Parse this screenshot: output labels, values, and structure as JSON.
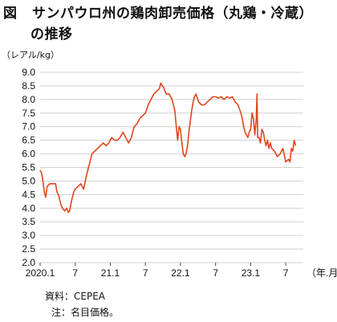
{
  "title": {
    "figure_label": "図",
    "line1": "サンパウロ州の鶏肉卸売価格（丸鶏・冷蔵）",
    "line2": "の推移"
  },
  "unit_label": "（レアル/kg）",
  "source": "資料：CEPEA",
  "note": "注：名目価格。",
  "colors": {
    "series": "#e0461e",
    "grid": "#d0d0d0",
    "axis": "#444444"
  },
  "chart_data": {
    "type": "line",
    "ylabel": "（レアル/kg）",
    "xlabel": "（年.月）",
    "ylim": [
      2.0,
      9.0
    ],
    "yticks": [
      "9.0",
      "8.5",
      "8.0",
      "7.5",
      "7.0",
      "6.5",
      "6.0",
      "5.5",
      "5.0",
      "4.5",
      "4.0",
      "3.5",
      "3.0",
      "2.5",
      "2.0"
    ],
    "xlim": [
      2020.0,
      2023.75
    ],
    "xticks": [
      {
        "label": "2020.1",
        "x": 2020.0
      },
      {
        "label": "7",
        "x": 2020.5
      },
      {
        "label": "21.1",
        "x": 2021.0
      },
      {
        "label": "7",
        "x": 2021.5
      },
      {
        "label": "22.1",
        "x": 2022.0
      },
      {
        "label": "7",
        "x": 2022.5
      },
      {
        "label": "23.1",
        "x": 2023.0
      },
      {
        "label": "7",
        "x": 2023.5
      }
    ],
    "x_unit_label": "（年.月）",
    "grid": true,
    "series": [
      {
        "x": [
          2020.0,
          2020.02,
          2020.04,
          2020.06,
          2020.08,
          2020.1,
          2020.14,
          2020.18,
          2020.22,
          2020.24,
          2020.26,
          2020.28,
          2020.3,
          2020.32,
          2020.35,
          2020.38,
          2020.4,
          2020.42,
          2020.45,
          2020.48,
          2020.5,
          2020.54,
          2020.58,
          2020.62,
          2020.66,
          2020.7,
          2020.74,
          2020.78,
          2020.82,
          2020.86,
          2020.9,
          2020.94,
          2020.98,
          2021.02,
          2021.06,
          2021.1,
          2021.14,
          2021.18,
          2021.22,
          2021.26,
          2021.3,
          2021.34,
          2021.38,
          2021.42,
          2021.46,
          2021.5,
          2021.54,
          2021.58,
          2021.62,
          2021.66,
          2021.7,
          2021.72,
          2021.74,
          2021.76,
          2021.78,
          2021.8,
          2021.84,
          2021.88,
          2021.92,
          2021.94,
          2021.96,
          2021.98,
          2022.0,
          2022.02,
          2022.04,
          2022.06,
          2022.08,
          2022.1,
          2022.12,
          2022.14,
          2022.16,
          2022.18,
          2022.2,
          2022.22,
          2022.26,
          2022.3,
          2022.34,
          2022.38,
          2022.42,
          2022.46,
          2022.5,
          2022.54,
          2022.58,
          2022.62,
          2022.66,
          2022.7,
          2022.74,
          2022.78,
          2022.82,
          2022.86,
          2022.88,
          2022.9,
          2022.92,
          2022.94,
          2022.96,
          2022.98,
          2023.0,
          2023.02,
          2023.04,
          2023.06,
          2023.08,
          2023.09,
          2023.1,
          2023.12,
          2023.14,
          2023.16,
          2023.18,
          2023.2,
          2023.22,
          2023.24,
          2023.26,
          2023.28,
          2023.3,
          2023.34,
          2023.38,
          2023.42,
          2023.46,
          2023.5,
          2023.54,
          2023.56,
          2023.58,
          2023.6,
          2023.62,
          2023.64
        ],
        "y": [
          5.4,
          5.3,
          5.0,
          4.6,
          4.4,
          4.8,
          4.9,
          4.9,
          4.9,
          4.6,
          4.5,
          4.3,
          4.1,
          4.0,
          3.9,
          4.0,
          3.85,
          3.9,
          4.3,
          4.6,
          4.7,
          4.8,
          4.9,
          4.7,
          5.2,
          5.6,
          6.0,
          6.1,
          6.2,
          6.3,
          6.4,
          6.3,
          6.4,
          6.6,
          6.5,
          6.5,
          6.6,
          6.8,
          6.6,
          6.4,
          6.6,
          7.0,
          7.1,
          7.3,
          7.4,
          7.5,
          7.8,
          8.0,
          8.2,
          8.3,
          8.4,
          8.6,
          8.5,
          8.45,
          8.3,
          8.2,
          8.2,
          8.0,
          7.6,
          7.0,
          6.5,
          7.0,
          6.9,
          6.4,
          6.0,
          5.9,
          6.0,
          6.3,
          6.8,
          7.2,
          7.6,
          7.9,
          8.1,
          8.2,
          7.9,
          7.8,
          7.8,
          7.9,
          8.0,
          8.1,
          8.1,
          8.05,
          8.1,
          8.0,
          8.1,
          8.05,
          8.1,
          7.9,
          7.8,
          7.5,
          7.3,
          7.0,
          6.8,
          6.7,
          6.6,
          6.8,
          6.9,
          7.5,
          7.3,
          6.7,
          7.3,
          8.2,
          6.6,
          6.6,
          6.4,
          6.9,
          6.8,
          6.5,
          6.3,
          6.5,
          6.2,
          6.4,
          6.2,
          6.1,
          5.9,
          6.0,
          6.2,
          5.7,
          5.8,
          5.7,
          6.2,
          6.1,
          6.5,
          6.3
        ]
      }
    ]
  }
}
